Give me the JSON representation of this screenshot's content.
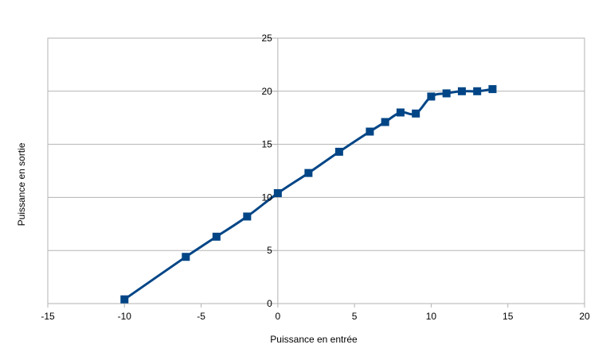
{
  "chart_data": {
    "type": "scatter",
    "title": "",
    "xlabel": "Puissance en entrée",
    "ylabel": "Puissance en sortie",
    "xlim": [
      -15,
      20
    ],
    "ylim": [
      0,
      25
    ],
    "x_ticks": [
      -15,
      -10,
      -5,
      0,
      5,
      10,
      15,
      20
    ],
    "y_ticks": [
      0,
      5,
      10,
      15,
      20,
      25
    ],
    "grid": "horizontal",
    "legend": "none",
    "line_smooth": true,
    "series": [
      {
        "color": "#004586",
        "marker": "square",
        "x": [
          -10,
          -6,
          -4,
          -2,
          0,
          2,
          4,
          6,
          7,
          8,
          9,
          10,
          11,
          12,
          13,
          14
        ],
        "y": [
          0.4,
          4.4,
          6.3,
          8.2,
          10.4,
          12.3,
          14.3,
          16.2,
          17.1,
          18.0,
          17.9,
          19.5,
          19.8,
          20.0,
          20.0,
          20.2
        ]
      }
    ]
  }
}
